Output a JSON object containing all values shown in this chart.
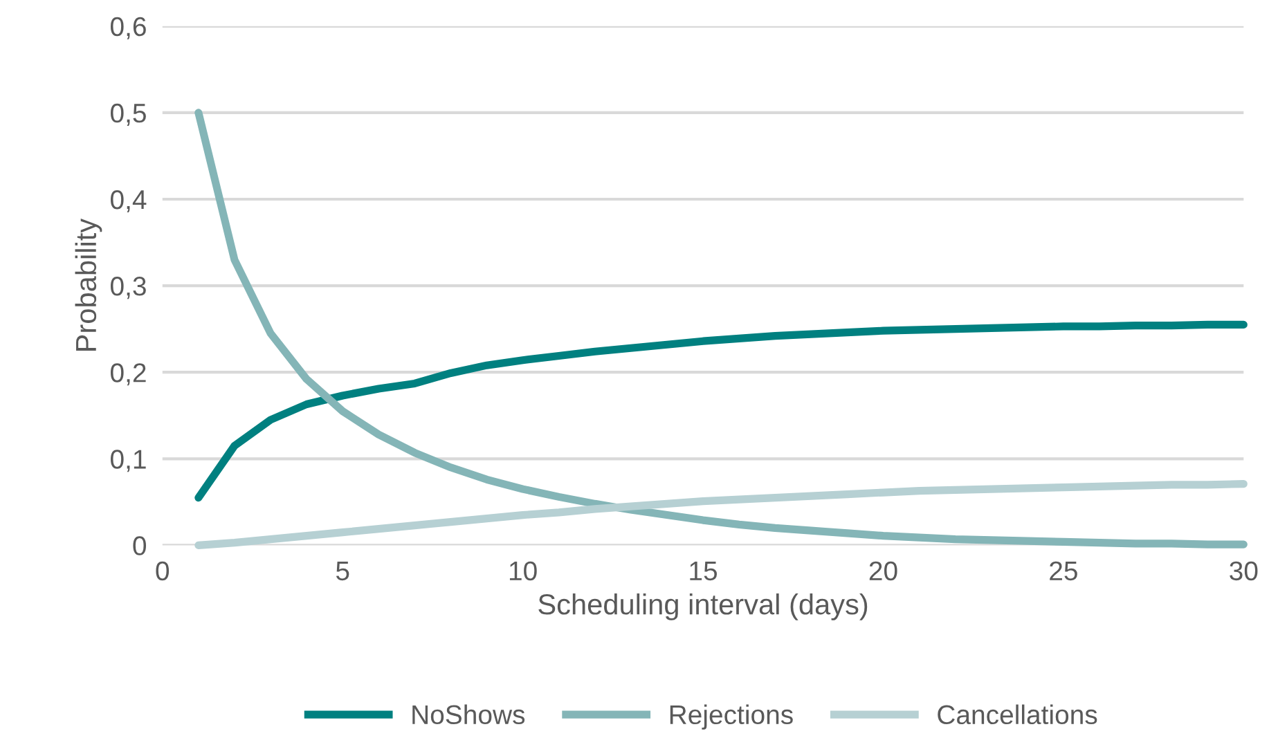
{
  "chart_data": {
    "type": "line",
    "xlabel": "Scheduling interval (days)",
    "ylabel": "Probability",
    "x": [
      1,
      2,
      3,
      4,
      5,
      6,
      7,
      8,
      9,
      10,
      11,
      12,
      13,
      14,
      15,
      16,
      17,
      18,
      19,
      20,
      21,
      22,
      23,
      24,
      25,
      26,
      27,
      28,
      29,
      30
    ],
    "series": [
      {
        "name": "NoShows",
        "color": "#008080",
        "values": [
          0.055,
          0.115,
          0.145,
          0.163,
          0.173,
          0.181,
          0.187,
          0.199,
          0.208,
          0.214,
          0.219,
          0.224,
          0.228,
          0.232,
          0.236,
          0.239,
          0.242,
          0.244,
          0.246,
          0.248,
          0.249,
          0.25,
          0.251,
          0.252,
          0.253,
          0.253,
          0.254,
          0.254,
          0.255,
          0.255
        ]
      },
      {
        "name": "Rejections",
        "color": "#84b5b7",
        "values": [
          0.5,
          0.33,
          0.245,
          0.192,
          0.155,
          0.128,
          0.107,
          0.09,
          0.076,
          0.065,
          0.056,
          0.048,
          0.041,
          0.035,
          0.029,
          0.024,
          0.02,
          0.017,
          0.014,
          0.011,
          0.009,
          0.007,
          0.006,
          0.005,
          0.004,
          0.003,
          0.002,
          0.002,
          0.001,
          0.001
        ]
      },
      {
        "name": "Cancellations",
        "color": "#b6d0d3",
        "values": [
          0,
          0.003,
          0.007,
          0.011,
          0.015,
          0.019,
          0.023,
          0.027,
          0.031,
          0.035,
          0.038,
          0.042,
          0.045,
          0.048,
          0.051,
          0.053,
          0.055,
          0.057,
          0.059,
          0.061,
          0.063,
          0.064,
          0.065,
          0.066,
          0.067,
          0.068,
          0.069,
          0.07,
          0.07,
          0.071
        ]
      }
    ],
    "xlim": [
      0,
      30
    ],
    "xticks": [
      0,
      5,
      10,
      15,
      20,
      25,
      30
    ],
    "ylim": [
      0,
      0.6
    ],
    "yticks": [
      0,
      {
        "value": 0.1,
        "label": "0,1"
      },
      {
        "value": 0.2,
        "label": "0,2"
      },
      {
        "value": 0.3,
        "label": "0,3"
      },
      {
        "value": 0.4,
        "label": "0,4"
      },
      {
        "value": 0.5,
        "label": "0,5"
      },
      {
        "value": 0.6,
        "label": "0,6"
      }
    ],
    "grid": "y",
    "legend": "bottom",
    "marker": "none",
    "line_style": "solid"
  }
}
